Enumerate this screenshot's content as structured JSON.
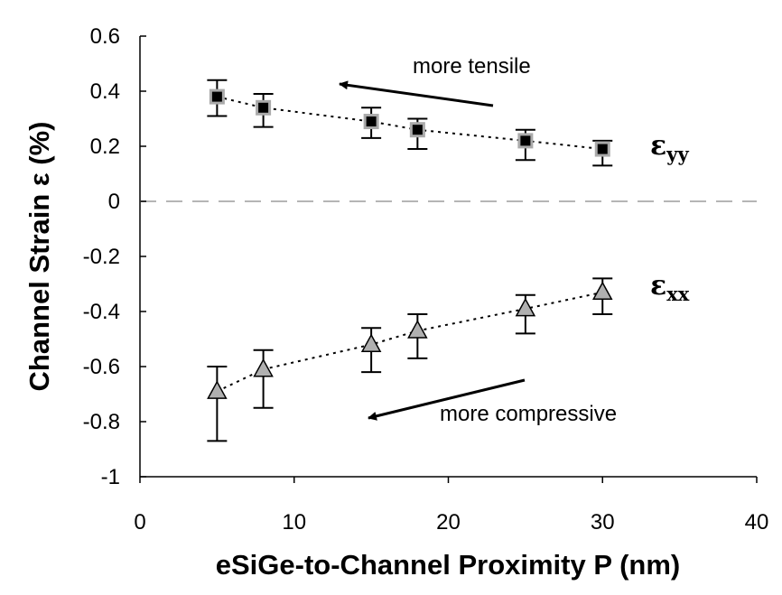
{
  "chart_data": {
    "type": "scatter",
    "xlabel": "eSiGe-to-Channel Proximity P (nm)",
    "ylabel": "Channel Strain ε (%)",
    "xlim": [
      0,
      40
    ],
    "ylim": [
      -1,
      0.6
    ],
    "x_ticks": [
      0,
      10,
      20,
      30,
      40
    ],
    "y_ticks": [
      -1,
      -0.8,
      -0.6,
      -0.4,
      -0.2,
      0,
      0.2,
      0.4,
      0.6
    ],
    "x_tick_labels": [
      "0",
      "10",
      "20",
      "30",
      "40"
    ],
    "y_tick_labels": [
      "-1",
      "-0.8",
      "-0.6",
      "-0.4",
      "-0.2",
      "0",
      "0.2",
      "0.4",
      "0.6"
    ],
    "zero_line": true,
    "grid": false,
    "series": [
      {
        "label_main": "ε",
        "label_sub": "yy",
        "marker": "square",
        "marker_color": "#000000",
        "marker_edge": "#aaaaaa",
        "x": [
          5,
          8,
          15,
          18,
          25,
          30
        ],
        "y": [
          0.38,
          0.34,
          0.29,
          0.26,
          0.22,
          0.19
        ],
        "err_low": [
          0.31,
          0.27,
          0.23,
          0.19,
          0.15,
          0.13
        ],
        "err_high": [
          0.44,
          0.39,
          0.34,
          0.3,
          0.26,
          0.22
        ]
      },
      {
        "label_main": "ε",
        "label_sub": "xx",
        "marker": "triangle",
        "marker_color": "#b0b0b0",
        "marker_edge": "#000000",
        "x": [
          5,
          8,
          15,
          18,
          25,
          30
        ],
        "y": [
          -0.69,
          -0.61,
          -0.52,
          -0.47,
          -0.39,
          -0.33
        ],
        "err_low": [
          -0.87,
          -0.75,
          -0.62,
          -0.57,
          -0.48,
          -0.41
        ],
        "err_high": [
          -0.6,
          -0.54,
          -0.46,
          -0.41,
          -0.34,
          -0.28
        ]
      }
    ],
    "annotations": [
      {
        "text": "more tensile"
      },
      {
        "text": "more compressive"
      }
    ]
  }
}
